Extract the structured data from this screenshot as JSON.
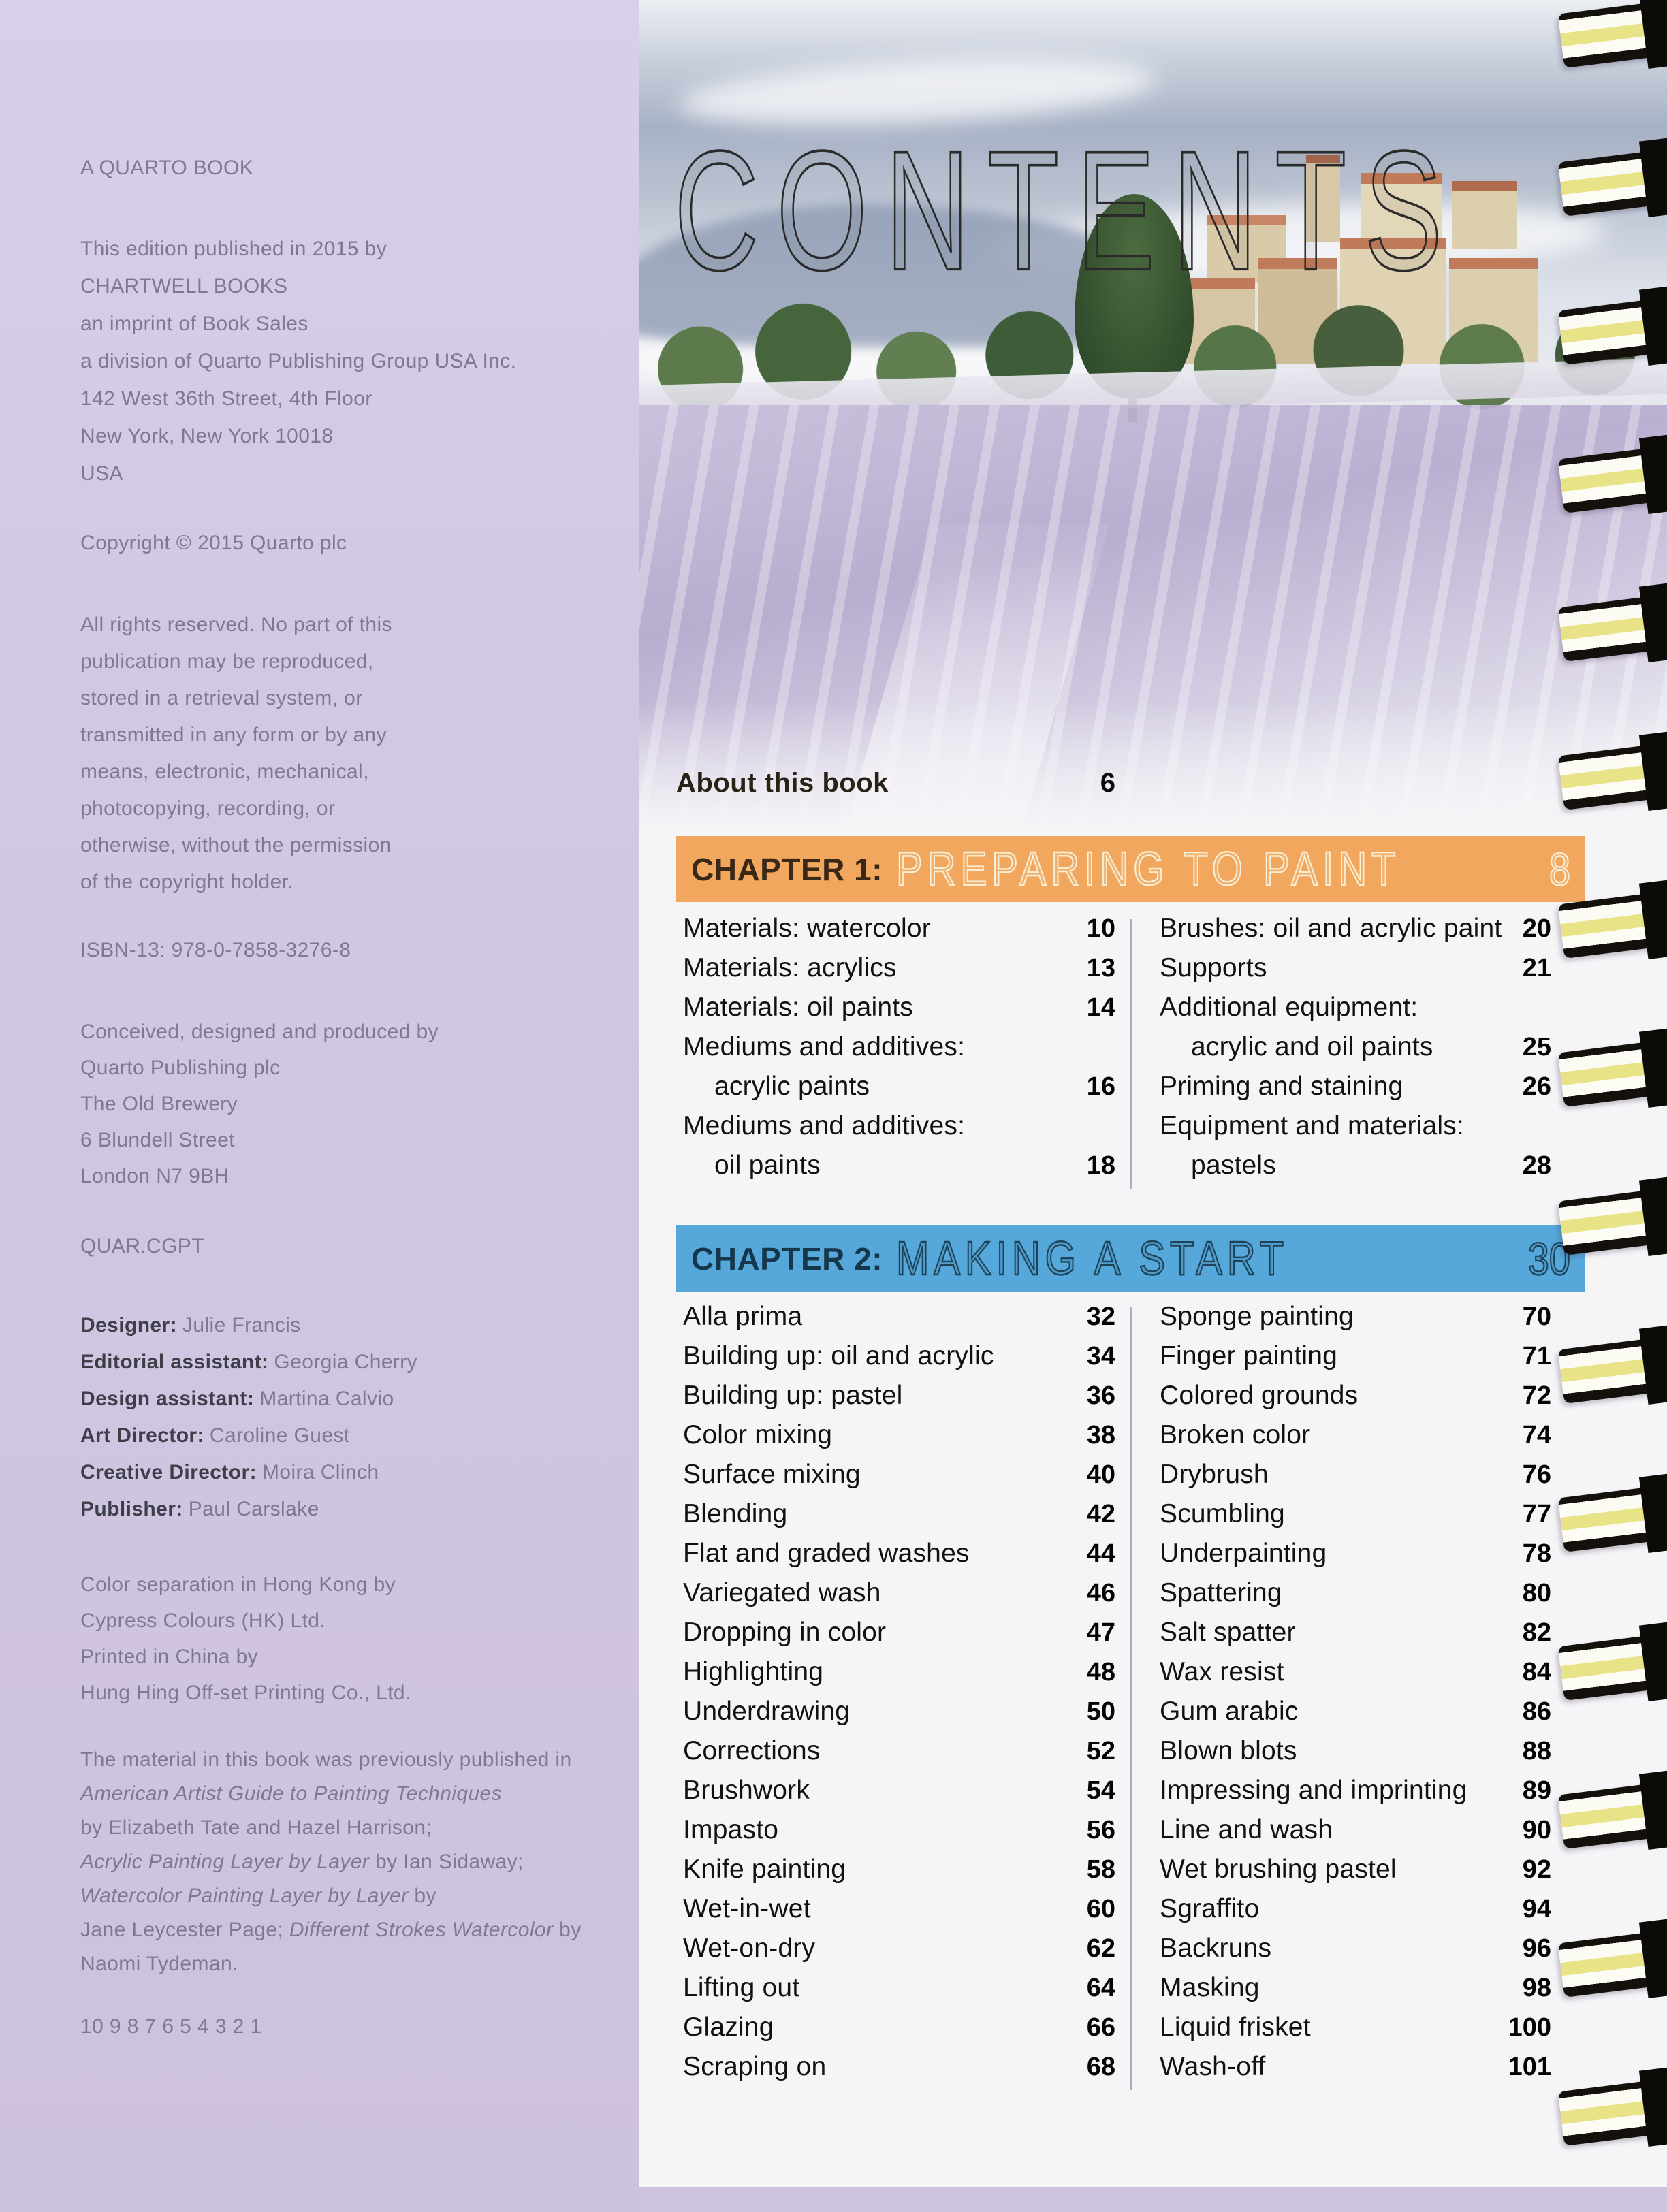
{
  "colophon": {
    "imprint": "A QUARTO BOOK",
    "edition_lines": [
      "This edition published in 2015 by",
      "CHARTWELL BOOKS",
      "an imprint of Book Sales",
      "a division of Quarto Publishing Group USA Inc.",
      "142 West 36th Street, 4th Floor",
      "New York, New York 10018",
      "USA"
    ],
    "copyright": "Copyright © 2015 Quarto plc",
    "rights_lines": [
      "All rights reserved. No part of this",
      "publication may be reproduced,",
      "stored in a retrieval system, or",
      "transmitted in any form or by any",
      "means, electronic, mechanical,",
      "photocopying, recording, or",
      "otherwise, without the permission",
      "of the copyright holder."
    ],
    "isbn": "ISBN-13: 978-0-7858-3276-8",
    "produced_lines": [
      "Conceived, designed and produced by",
      "Quarto Publishing plc",
      "The Old Brewery",
      "6 Blundell Street",
      "London N7 9BH"
    ],
    "code": "QUAR.CGPT",
    "credits": [
      {
        "role": "Designer:",
        "name": "Julie Francis"
      },
      {
        "role": "Editorial assistant:",
        "name": "Georgia Cherry"
      },
      {
        "role": "Design assistant:",
        "name": "Martina Calvio"
      },
      {
        "role": "Art Director:",
        "name": "Caroline Guest"
      },
      {
        "role": "Creative Director:",
        "name": "Moira Clinch"
      },
      {
        "role": "Publisher:",
        "name": "Paul Carslake"
      }
    ],
    "printing_lines": [
      "Color separation in Hong Kong by",
      "Cypress Colours (HK) Ltd.",
      "Printed in China by",
      "Hung Hing Off-set Printing Co., Ltd."
    ],
    "prev": {
      "l1": "The material in this book was previously published in",
      "l2": "American Artist Guide to Painting Techniques",
      "l3": "by Elizabeth Tate and Hazel Harrison;",
      "l4a": "Acrylic Painting Layer by Layer",
      "l4b": " by Ian Sidaway;",
      "l5a": "Watercolor Painting Layer by Layer",
      "l5b": " by",
      "l6a": "Jane Leycester Page; ",
      "l6b": "Different Strokes Watercolor",
      "l6c": " by",
      "l7": "Naomi Tydeman."
    },
    "print_run": "10 9 8 7 6 5 4 3 2 1"
  },
  "contents_page": {
    "title": "CONTENTS",
    "about": {
      "label": "About this book",
      "page": "6"
    },
    "accent_orange": "#f1a85e",
    "accent_blue": "#55a8d9",
    "chapters": [
      {
        "label": "CHAPTER 1:",
        "name": "PREPARING TO PAINT",
        "page": "8",
        "col1": [
          {
            "label": "Materials: watercolor",
            "page": "10"
          },
          {
            "label": "Materials: acrylics",
            "page": "13"
          },
          {
            "label": "Materials: oil paints",
            "page": "14"
          },
          {
            "label": "Mediums and additives:",
            "page": ""
          },
          {
            "label": "acrylic paints",
            "page": "16",
            "indent": true
          },
          {
            "label": "Mediums and additives:",
            "page": ""
          },
          {
            "label": "oil paints",
            "page": "18",
            "indent": true
          }
        ],
        "col2": [
          {
            "label": "Brushes: oil and acrylic paint",
            "page": "20"
          },
          {
            "label": "Supports",
            "page": "21"
          },
          {
            "label": "Additional equipment:",
            "page": ""
          },
          {
            "label": "acrylic and oil paints",
            "page": "25",
            "indent": true
          },
          {
            "label": "Priming and staining",
            "page": "26"
          },
          {
            "label": "Equipment and materials:",
            "page": ""
          },
          {
            "label": "pastels",
            "page": "28",
            "indent": true
          }
        ]
      },
      {
        "label": "CHAPTER 2:",
        "name": "MAKING A START",
        "page": "30",
        "col1": [
          {
            "label": "Alla prima",
            "page": "32"
          },
          {
            "label": "Building up: oil and acrylic",
            "page": "34"
          },
          {
            "label": "Building up: pastel",
            "page": "36"
          },
          {
            "label": "Color mixing",
            "page": "38"
          },
          {
            "label": "Surface mixing",
            "page": "40"
          },
          {
            "label": "Blending",
            "page": "42"
          },
          {
            "label": "Flat and graded washes",
            "page": "44"
          },
          {
            "label": "Variegated wash",
            "page": "46"
          },
          {
            "label": "Dropping in color",
            "page": "47"
          },
          {
            "label": "Highlighting",
            "page": "48"
          },
          {
            "label": "Underdrawing",
            "page": "50"
          },
          {
            "label": "Corrections",
            "page": "52"
          },
          {
            "label": "Brushwork",
            "page": "54"
          },
          {
            "label": "Impasto",
            "page": "56"
          },
          {
            "label": "Knife painting",
            "page": "58"
          },
          {
            "label": "Wet-in-wet",
            "page": "60"
          },
          {
            "label": "Wet-on-dry",
            "page": "62"
          },
          {
            "label": "Lifting out",
            "page": "64"
          },
          {
            "label": "Glazing",
            "page": "66"
          },
          {
            "label": "Scraping on",
            "page": "68"
          }
        ],
        "col2": [
          {
            "label": "Sponge painting",
            "page": "70"
          },
          {
            "label": "Finger painting",
            "page": "71"
          },
          {
            "label": "Colored grounds",
            "page": "72"
          },
          {
            "label": "Broken color",
            "page": "74"
          },
          {
            "label": "Drybrush",
            "page": "76"
          },
          {
            "label": "Scumbling",
            "page": "77"
          },
          {
            "label": "Underpainting",
            "page": "78"
          },
          {
            "label": "Spattering",
            "page": "80"
          },
          {
            "label": "Salt spatter",
            "page": "82"
          },
          {
            "label": "Wax resist",
            "page": "84"
          },
          {
            "label": "Gum arabic",
            "page": "86"
          },
          {
            "label": "Blown blots",
            "page": "88"
          },
          {
            "label": "Impressing and imprinting",
            "page": "89"
          },
          {
            "label": "Line and wash",
            "page": "90"
          },
          {
            "label": "Wet brushing pastel",
            "page": "92"
          },
          {
            "label": "Sgraffito",
            "page": "94"
          },
          {
            "label": "Backruns",
            "page": "96"
          },
          {
            "label": "Masking",
            "page": "98"
          },
          {
            "label": "Liquid frisket",
            "page": "100"
          },
          {
            "label": "Wash-off",
            "page": "101"
          }
        ]
      }
    ]
  }
}
